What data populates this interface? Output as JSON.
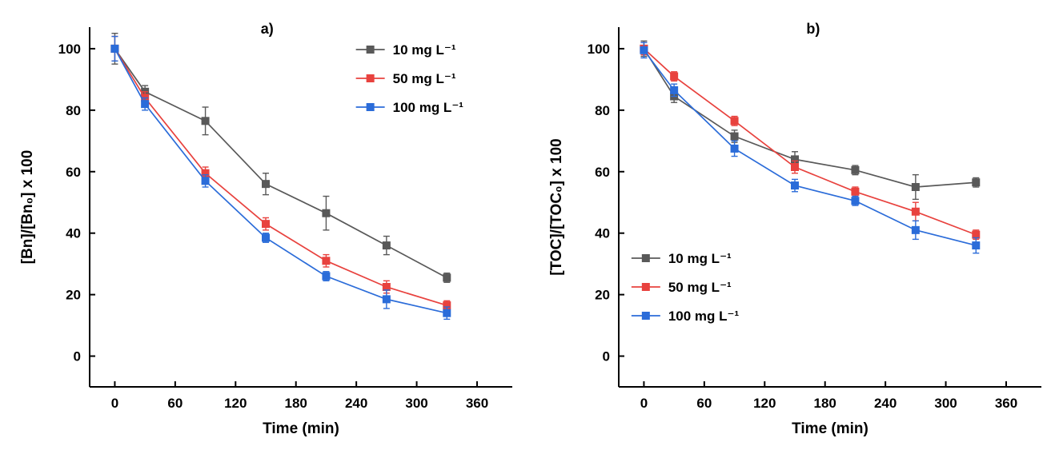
{
  "page": {
    "background": "#ffffff",
    "axis_color": "#000000"
  },
  "chart_data": [
    {
      "type": "line",
      "title": "a)",
      "title_pos": {
        "x": 0.42
      },
      "xlabel": "Time (min)",
      "ylabel": "[Bn]/[Bn₀] x 100",
      "x": [
        0,
        30,
        90,
        150,
        210,
        270,
        330
      ],
      "xlim": [
        -25,
        395
      ],
      "ylim": [
        -10,
        107
      ],
      "xticks": [
        0,
        60,
        120,
        180,
        240,
        300,
        360
      ],
      "yticks": [
        0,
        20,
        40,
        60,
        80,
        100
      ],
      "grid": false,
      "legend": {
        "position": "top-right",
        "x": 0.63,
        "y": 0.04
      },
      "series": [
        {
          "name": "10 mg L⁻¹",
          "color": "#595959",
          "values": [
            100,
            86,
            76.5,
            56,
            46.5,
            36,
            25.5
          ],
          "errors": [
            5,
            2,
            4.5,
            3.5,
            5.5,
            3,
            1.5
          ]
        },
        {
          "name": "50 mg L⁻¹",
          "color": "#e8423e",
          "values": [
            100,
            84,
            59.5,
            43,
            31,
            22.5,
            16.5
          ],
          "errors": [
            4,
            2,
            2,
            2,
            2,
            2,
            1.5
          ]
        },
        {
          "name": "100 mg L⁻¹",
          "color": "#2b6cd9",
          "values": [
            100,
            82,
            57,
            38.5,
            26,
            18.5,
            14
          ],
          "errors": [
            4,
            2,
            2,
            1.5,
            1.5,
            3,
            2
          ]
        }
      ]
    },
    {
      "type": "line",
      "title": "b)",
      "title_pos": {
        "x": 0.46
      },
      "xlabel": "Time (min)",
      "ylabel": "[TOC]/[TOC₀] x 100",
      "x": [
        0,
        30,
        90,
        150,
        210,
        270,
        330
      ],
      "xlim": [
        -25,
        395
      ],
      "ylim": [
        -10,
        107
      ],
      "xticks": [
        0,
        60,
        120,
        180,
        240,
        300,
        360
      ],
      "yticks": [
        0,
        20,
        40,
        60,
        80,
        100
      ],
      "grid": false,
      "legend": {
        "position": "bottom-left",
        "x": 0.03,
        "y": 0.62
      },
      "series": [
        {
          "name": "10 mg L⁻¹",
          "color": "#595959",
          "values": [
            100,
            84.5,
            71.5,
            64,
            60.5,
            55,
            56.5
          ],
          "errors": [
            2.5,
            2,
            2,
            2.5,
            1.5,
            4,
            1.5
          ]
        },
        {
          "name": "50 mg L⁻¹",
          "color": "#e8423e",
          "values": [
            100,
            91,
            76.5,
            61.5,
            53.5,
            47,
            39.5
          ],
          "errors": [
            2,
            1.5,
            1.5,
            2,
            1.5,
            3,
            1.5
          ]
        },
        {
          "name": "100 mg L⁻¹",
          "color": "#2b6cd9",
          "values": [
            99.5,
            86.5,
            67.5,
            55.5,
            50.5,
            41,
            36
          ],
          "errors": [
            2.5,
            2,
            2.5,
            2,
            1.5,
            3,
            2.5
          ]
        }
      ]
    }
  ]
}
